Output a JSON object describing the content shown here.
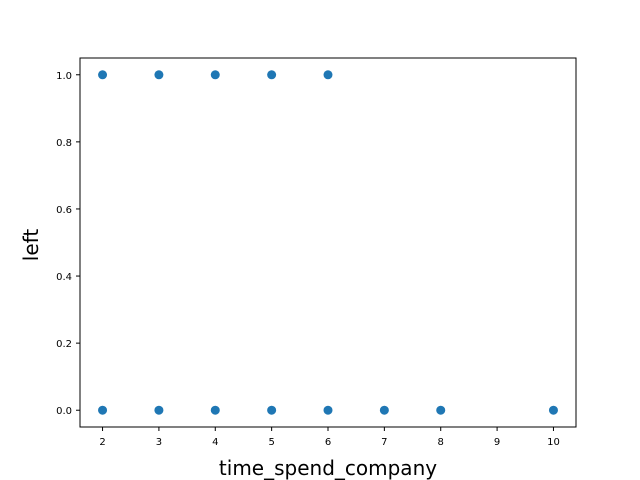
{
  "chart_data": {
    "type": "scatter",
    "title": "",
    "xlabel": "time_spend_company",
    "ylabel": "left",
    "xlim": [
      1.6,
      10.4
    ],
    "ylim": [
      -0.05,
      1.05
    ],
    "xticks": [
      2,
      3,
      4,
      5,
      6,
      7,
      8,
      9,
      10
    ],
    "xtick_labels": [
      "2",
      "3",
      "4",
      "5",
      "6",
      "7",
      "8",
      "9",
      "10"
    ],
    "yticks": [
      0.0,
      0.2,
      0.4,
      0.6,
      0.8,
      1.0
    ],
    "ytick_labels": [
      "0.0",
      "0.2",
      "0.4",
      "0.6",
      "0.8",
      "1.0"
    ],
    "grid": false,
    "legend": "none",
    "marker_color": "#1f77b4",
    "series": [
      {
        "x": [
          2,
          3,
          4,
          5,
          6,
          7,
          8,
          10,
          2,
          3,
          4,
          5,
          6
        ],
        "y": [
          0,
          0,
          0,
          0,
          0,
          0,
          0,
          0,
          1,
          1,
          1,
          1,
          1
        ]
      }
    ]
  }
}
